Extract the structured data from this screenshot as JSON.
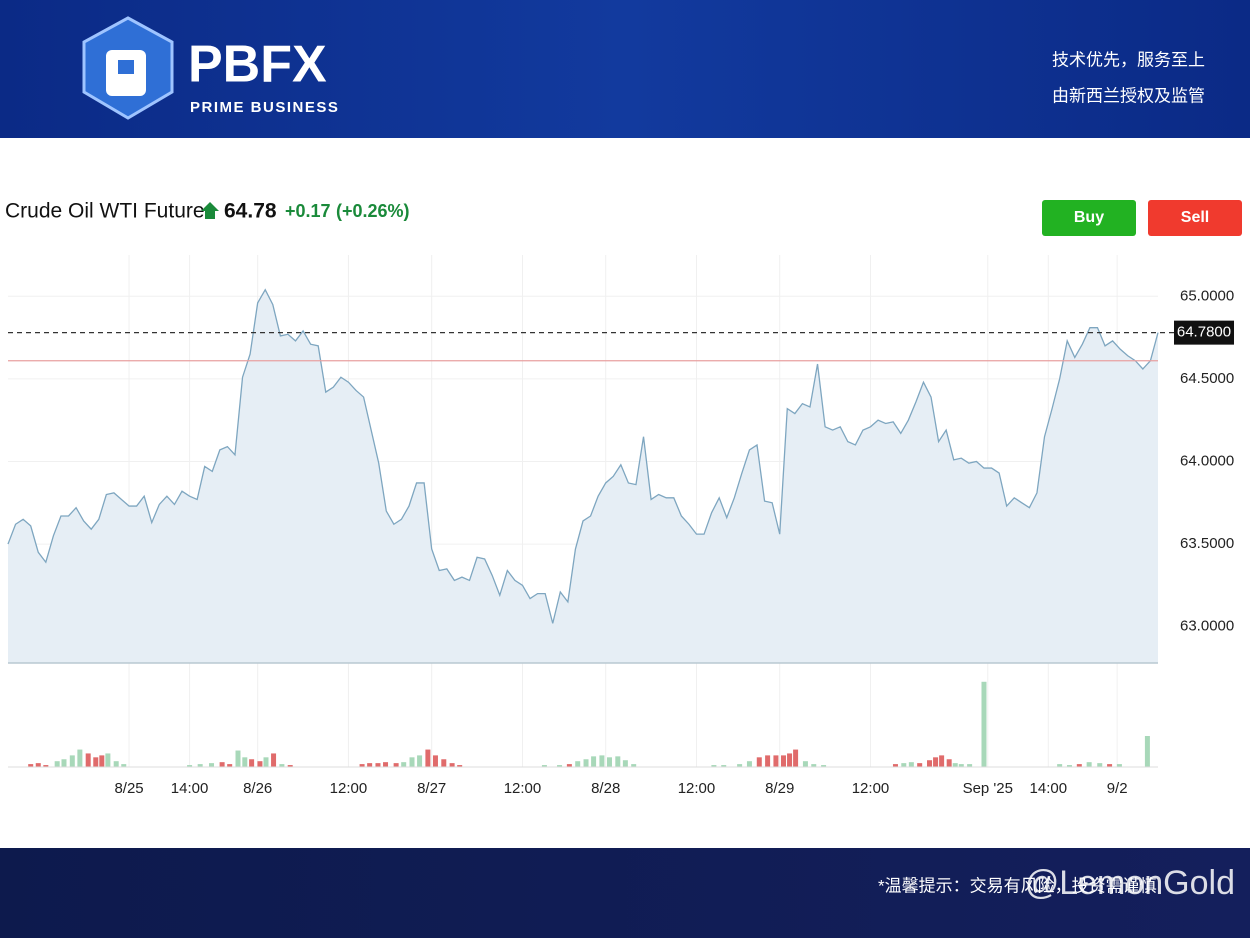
{
  "header": {
    "logo": "PBFX",
    "tagline": "PRIME BUSINESS",
    "slogan_1": "技术优先，服务至上",
    "slogan_2": "由新西兰授权及监管"
  },
  "buttons": [
    "Buy",
    "Sell"
  ],
  "footer": {
    "notice": "*温馨提示：交易有风险，投资需谨慎",
    "watermark": "@LemonGold"
  },
  "chart_data": {
    "type": "line",
    "title": "Crude Oil WTI Futures",
    "price": "64.78",
    "change": "+0.17",
    "change_pct": "(+0.26%)",
    "color": "#7ea6c0",
    "fill": "#e6eef5",
    "values": [
      63.5,
      63.62,
      63.65,
      63.61,
      63.45,
      63.39,
      63.55,
      63.67,
      63.67,
      63.72,
      63.64,
      63.59,
      63.65,
      63.8,
      63.81,
      63.77,
      63.73,
      63.73,
      63.79,
      63.63,
      63.74,
      63.79,
      63.74,
      63.82,
      63.79,
      63.77,
      63.97,
      63.94,
      64.07,
      64.09,
      64.04,
      64.51,
      64.65,
      64.96,
      65.04,
      64.95,
      64.76,
      64.77,
      64.73,
      64.79,
      64.71,
      64.7,
      64.42,
      64.45,
      64.51,
      64.48,
      64.43,
      64.39,
      64.19,
      63.99,
      63.7,
      63.62,
      63.65,
      63.73,
      63.87,
      63.87,
      63.47,
      63.34,
      63.35,
      63.28,
      63.3,
      63.28,
      63.42,
      63.41,
      63.31,
      63.19,
      63.34,
      63.28,
      63.25,
      63.17,
      63.2,
      63.2,
      63.02,
      63.21,
      63.15,
      63.47,
      63.64,
      63.67,
      63.79,
      63.87,
      63.91,
      63.98,
      63.87,
      63.86,
      64.15,
      63.77,
      63.8,
      63.78,
      63.78,
      63.67,
      63.62,
      63.56,
      63.56,
      63.69,
      63.78,
      63.66,
      63.78,
      63.93,
      64.07,
      64.1,
      63.76,
      63.75,
      63.56,
      64.32,
      64.29,
      64.35,
      64.33,
      64.59,
      64.21,
      64.19,
      64.21,
      64.12,
      64.1,
      64.19,
      64.21,
      64.25,
      64.23,
      64.24,
      64.17,
      64.25,
      64.36,
      64.48,
      64.39,
      64.12,
      64.19,
      64.01,
      64.02,
      63.99,
      64.0,
      63.96,
      63.96,
      63.93,
      63.73,
      63.78,
      63.75,
      63.72,
      63.81,
      64.15,
      64.32,
      64.5,
      64.73,
      64.63,
      64.71,
      64.81,
      64.81,
      64.7,
      64.73,
      64.68,
      64.64,
      64.61,
      64.56,
      64.61,
      64.78
    ],
    "xlim": [
      0,
      152
    ],
    "xticks": [
      {
        "value": 16,
        "label": "8/25"
      },
      {
        "value": 24,
        "label": "14:00"
      },
      {
        "value": 33,
        "label": "8/26"
      },
      {
        "value": 45,
        "label": "12:00"
      },
      {
        "value": 56,
        "label": "8/27"
      },
      {
        "value": 68,
        "label": "12:00"
      },
      {
        "value": 79,
        "label": "8/28"
      },
      {
        "value": 91,
        "label": "12:00"
      },
      {
        "value": 102,
        "label": "8/29"
      },
      {
        "value": 114,
        "label": "12:00"
      },
      {
        "value": 129.5,
        "label": "Sep '25"
      },
      {
        "value": 137.5,
        "label": "14:00"
      },
      {
        "value": 146.6,
        "label": "9/2"
      }
    ],
    "ylim": [
      62.78,
      65.25
    ],
    "yticks": [
      {
        "value": 63,
        "label": "63.0000"
      },
      {
        "value": 63.5,
        "label": "63.5000"
      },
      {
        "value": 64,
        "label": "64.0000"
      },
      {
        "value": 64.5,
        "label": "64.5000"
      },
      {
        "value": 65,
        "label": "65.0000"
      }
    ],
    "grid": true,
    "last_price": {
      "value": 64.78,
      "label": "64.7800"
    },
    "ref_line": 64.61,
    "volume": {
      "ylim": [
        0,
        95
      ],
      "x": [
        3,
        4,
        5,
        6.5,
        7.4,
        8.5,
        9.5,
        10.6,
        11.6,
        12.4,
        13.2,
        14.3,
        15.3,
        24,
        25.4,
        26.9,
        28.3,
        29.3,
        30.4,
        31.3,
        32.2,
        33.3,
        34.1,
        35.1,
        36.2,
        37.3,
        46.8,
        47.8,
        48.9,
        49.9,
        51.3,
        52.3,
        53.4,
        54.4,
        55.5,
        56.5,
        57.6,
        58.7,
        59.7,
        70.9,
        72.9,
        74.2,
        75.3,
        76.4,
        77.4,
        78.5,
        79.5,
        80.6,
        81.6,
        82.7,
        93.3,
        94.6,
        96.7,
        98,
        99.3,
        100.4,
        101.5,
        102.5,
        103.3,
        104.1,
        105.4,
        106.5,
        107.8,
        117.3,
        118.4,
        119.4,
        120.5,
        121.8,
        122.6,
        123.4,
        124.4,
        125.2,
        126,
        127.1,
        129,
        139,
        140.3,
        141.6,
        142.9,
        144.3,
        145.6,
        146.9,
        150.6
      ],
      "values": [
        3,
        4,
        2,
        6,
        8,
        12,
        18,
        14,
        10,
        12,
        14,
        6,
        3,
        2,
        3,
        4,
        5,
        3,
        17,
        10,
        8,
        6,
        10,
        14,
        3,
        2,
        3,
        4,
        4,
        5,
        4,
        5,
        10,
        12,
        18,
        12,
        8,
        4,
        2,
        2,
        2,
        3,
        6,
        8,
        11,
        12,
        10,
        11,
        7,
        3,
        2,
        2,
        3,
        6,
        10,
        12,
        12,
        12,
        14,
        18,
        6,
        3,
        2,
        3,
        4,
        5,
        4,
        7,
        10,
        12,
        8,
        4,
        3,
        3,
        88,
        3,
        2,
        3,
        5,
        4,
        3,
        3,
        32
      ],
      "colors": [
        "#e06b6b",
        "#e06b6b",
        "#e06b6b",
        "#a8d8b9",
        "#a8d8b9",
        "#a8d8b9",
        "#a8d8b9",
        "#e06b6b",
        "#e06b6b",
        "#e06b6b",
        "#a8d8b9",
        "#a8d8b9",
        "#a8d8b9",
        "#a8d8b9",
        "#a8d8b9",
        "#a8d8b9",
        "#e06b6b",
        "#e06b6b",
        "#a8d8b9",
        "#a8d8b9",
        "#e06b6b",
        "#e06b6b",
        "#a8d8b9",
        "#e06b6b",
        "#a8d8b9",
        "#e06b6b",
        "#e06b6b",
        "#e06b6b",
        "#e06b6b",
        "#e06b6b",
        "#e06b6b",
        "#a8d8b9",
        "#a8d8b9",
        "#a8d8b9",
        "#e06b6b",
        "#e06b6b",
        "#e06b6b",
        "#e06b6b",
        "#e06b6b",
        "#a8d8b9",
        "#a8d8b9",
        "#e06b6b",
        "#a8d8b9",
        "#a8d8b9",
        "#a8d8b9",
        "#a8d8b9",
        "#a8d8b9",
        "#a8d8b9",
        "#a8d8b9",
        "#a8d8b9",
        "#a8d8b9",
        "#a8d8b9",
        "#a8d8b9",
        "#a8d8b9",
        "#e06b6b",
        "#e06b6b",
        "#e06b6b",
        "#e06b6b",
        "#e06b6b",
        "#e06b6b",
        "#a8d8b9",
        "#a8d8b9",
        "#a8d8b9",
        "#e06b6b",
        "#a8d8b9",
        "#a8d8b9",
        "#e06b6b",
        "#e06b6b",
        "#e06b6b",
        "#e06b6b",
        "#e06b6b",
        "#a8d8b9",
        "#a8d8b9",
        "#a8d8b9",
        "#a8d8b9",
        "#a8d8b9",
        "#a8d8b9",
        "#e06b6b",
        "#a8d8b9",
        "#a8d8b9",
        "#e06b6b",
        "#a8d8b9",
        "#a8d8b9"
      ]
    }
  }
}
